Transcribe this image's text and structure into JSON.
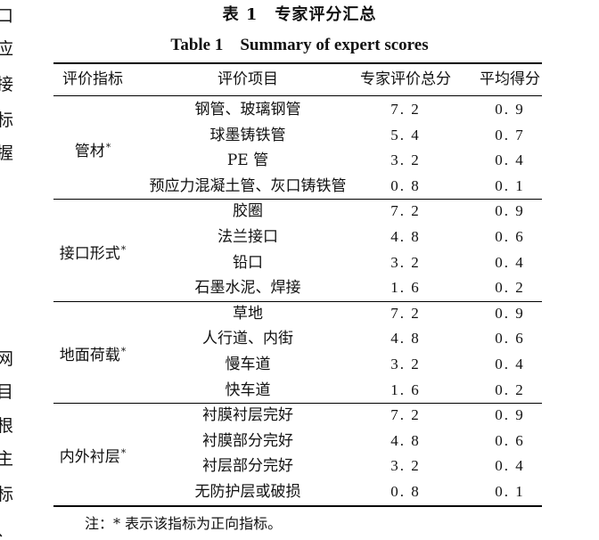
{
  "left_margin_chars": [
    "口",
    "应",
    "接",
    "标",
    "握",
    "网",
    "目",
    "根",
    "主",
    "标",
    "、"
  ],
  "title_cn": "表 1　专家评分汇总",
  "title_en": "Table 1　Summary of expert scores",
  "headers": [
    "评价指标",
    "评价项目",
    "专家评价总分",
    "平均得分"
  ],
  "groups": [
    {
      "indicator": "管材",
      "star": "*",
      "items": [
        {
          "item": "钢管、玻璃钢管",
          "total": "7. 2",
          "avg": "0. 9"
        },
        {
          "item": "球墨铸铁管",
          "total": "5. 4",
          "avg": "0. 7"
        },
        {
          "item": "PE 管",
          "total": "3. 2",
          "avg": "0. 4"
        },
        {
          "item": "预应力混凝土管、灰口铸铁管",
          "total": "0. 8",
          "avg": "0. 1"
        }
      ]
    },
    {
      "indicator": "接口形式",
      "star": "*",
      "items": [
        {
          "item": "胶圈",
          "total": "7. 2",
          "avg": "0. 9"
        },
        {
          "item": "法兰接口",
          "total": "4. 8",
          "avg": "0. 6"
        },
        {
          "item": "铅口",
          "total": "3. 2",
          "avg": "0. 4"
        },
        {
          "item": "石墨水泥、焊接",
          "total": "1. 6",
          "avg": "0. 2"
        }
      ]
    },
    {
      "indicator": "地面荷载",
      "star": "*",
      "items": [
        {
          "item": "草地",
          "total": "7. 2",
          "avg": "0. 9"
        },
        {
          "item": "人行道、内街",
          "total": "4. 8",
          "avg": "0. 6"
        },
        {
          "item": "慢车道",
          "total": "3. 2",
          "avg": "0. 4"
        },
        {
          "item": "快车道",
          "total": "1. 6",
          "avg": "0. 2"
        }
      ]
    },
    {
      "indicator": "内外衬层",
      "star": "*",
      "items": [
        {
          "item": "衬膜衬层完好",
          "total": "7. 2",
          "avg": "0. 9"
        },
        {
          "item": "衬膜部分完好",
          "total": "4. 8",
          "avg": "0. 6"
        },
        {
          "item": "衬层部分完好",
          "total": "3. 2",
          "avg": "0. 4"
        },
        {
          "item": "无防护层或破损",
          "total": "0. 8",
          "avg": "0. 1"
        }
      ]
    }
  ],
  "note": "注：* 表示该指标为正向指标。"
}
